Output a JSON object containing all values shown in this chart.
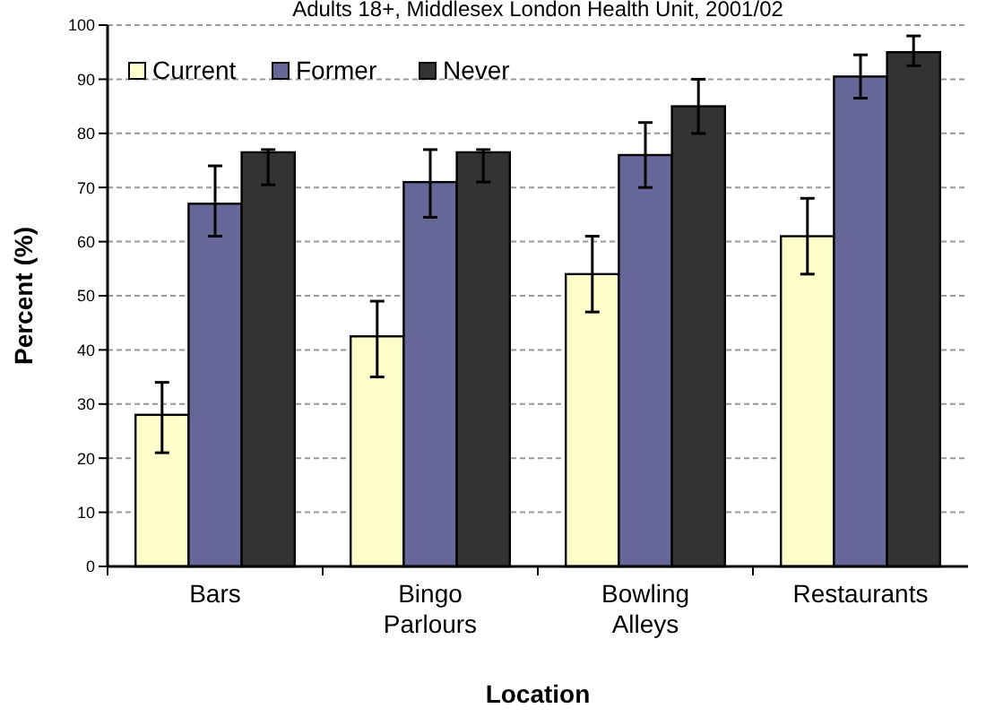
{
  "chart_data": {
    "type": "bar",
    "title": "Adults 18+, Middlesex London Health Unit, 2001/02",
    "xlabel": "Location",
    "ylabel": "Percent (%)",
    "categories": [
      "Bars",
      "Bingo\nParlours",
      "Bowling\nAlleys",
      "Restaurants"
    ],
    "series": [
      {
        "name": "Current",
        "color": "#ffffcc",
        "values": [
          28,
          42.5,
          54,
          61
        ],
        "errors": [
          [
            21,
            34
          ],
          [
            35,
            49
          ],
          [
            47,
            61
          ],
          [
            54,
            68
          ]
        ]
      },
      {
        "name": "Former",
        "color": "#666699",
        "values": [
          67,
          71,
          76,
          90.5
        ],
        "errors": [
          [
            61,
            74
          ],
          [
            64.5,
            77
          ],
          [
            70,
            82
          ],
          [
            86.5,
            94.5
          ]
        ]
      },
      {
        "name": "Never",
        "color": "#333333",
        "values": [
          76.5,
          76.5,
          85,
          95
        ],
        "errors": [
          [
            70.5,
            77
          ],
          [
            71,
            77
          ],
          [
            80,
            90
          ],
          [
            92.5,
            98
          ]
        ]
      }
    ],
    "ylim": [
      0,
      100
    ],
    "yticks": [
      0,
      10,
      20,
      30,
      40,
      50,
      60,
      70,
      80,
      90,
      100
    ],
    "grid": "y",
    "legend": "top left"
  }
}
